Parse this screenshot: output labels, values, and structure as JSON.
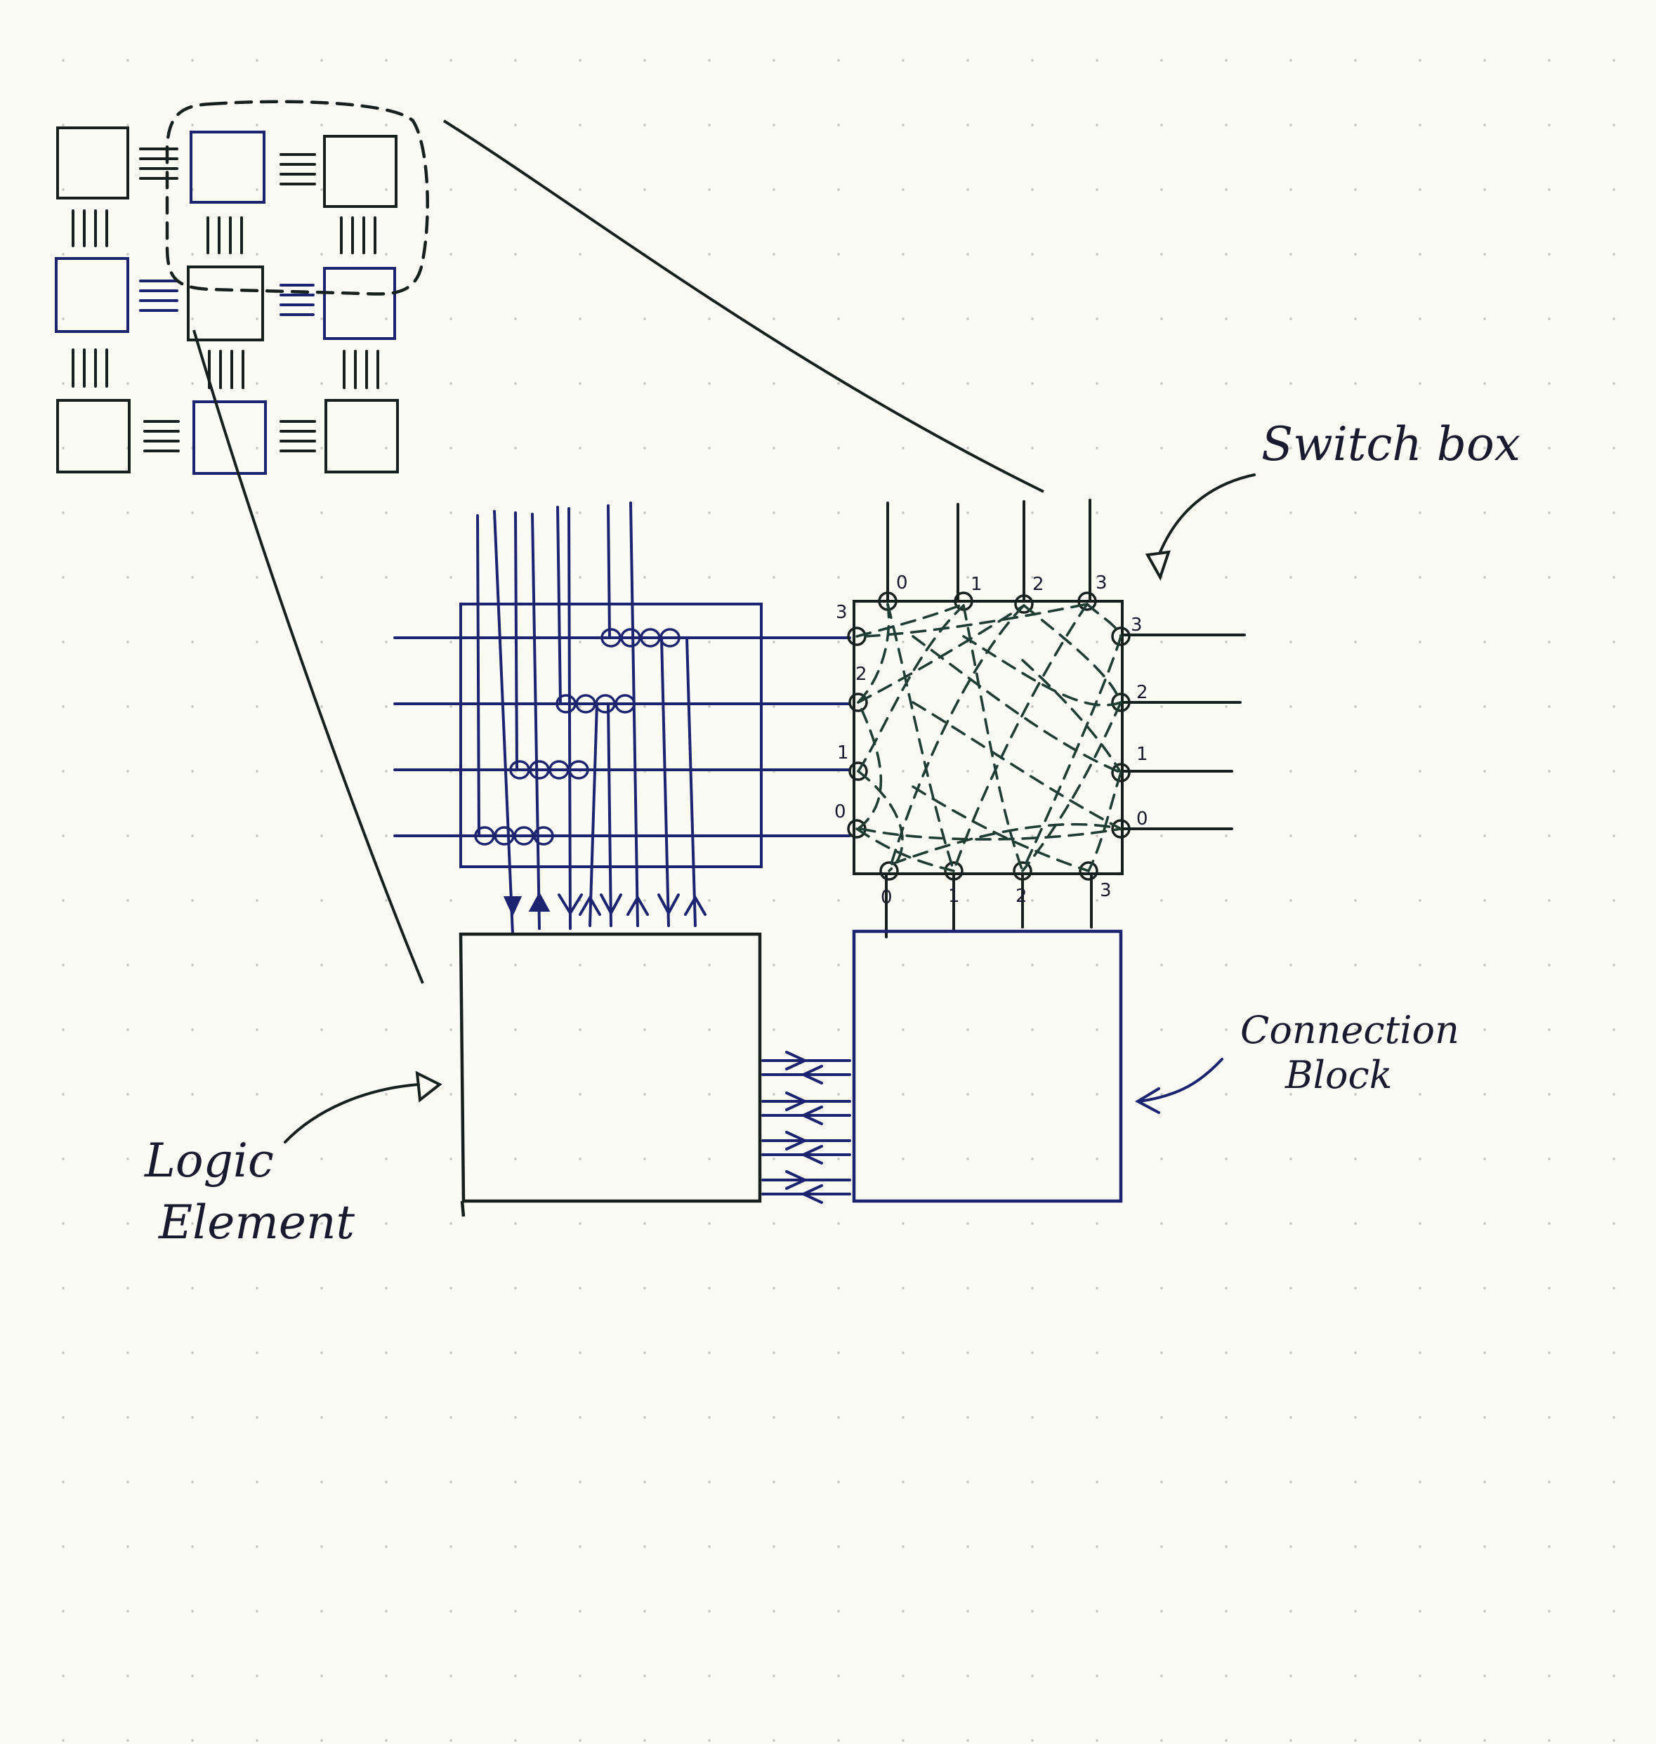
{
  "labels": {
    "switch_box": "Switch box",
    "connection_block": [
      "Connection",
      "Block"
    ],
    "logic_element": [
      "Logic",
      "Element"
    ]
  },
  "switch_box_port_numbers": {
    "top": [
      "0",
      "1",
      "2",
      "3"
    ],
    "bottom": [
      "0",
      "1",
      "2",
      "3"
    ],
    "left": [
      "3",
      "2",
      "1",
      "0"
    ],
    "right": [
      "3",
      "2",
      "1",
      "0"
    ]
  },
  "colors": {
    "ink_black": "#16201c",
    "ink_blue": "#1c2470",
    "paper": "#fbfbf6"
  }
}
